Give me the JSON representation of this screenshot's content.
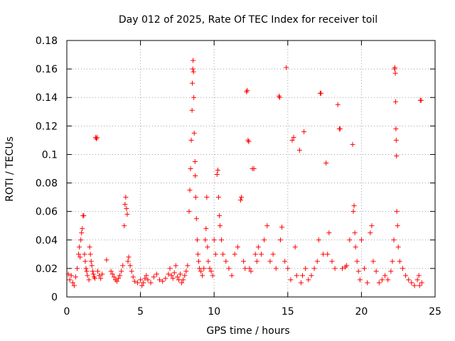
{
  "chart_data": {
    "type": "scatter",
    "title": "Day 012 of 2025, Rate Of TEC Index for receiver toil",
    "xlabel": "GPS time / hours",
    "ylabel": "ROTI / TECUs",
    "xlim": [
      0,
      25
    ],
    "ylim": [
      0,
      0.18
    ],
    "xticks": [
      0,
      5,
      10,
      15,
      20,
      25
    ],
    "xtick_labels": [
      "0",
      "5",
      "10",
      "15",
      "20",
      "25"
    ],
    "yticks": [
      0,
      0.02,
      0.04,
      0.06,
      0.08,
      0.1,
      0.12,
      0.14,
      0.16,
      0.18
    ],
    "ytick_labels": [
      "0",
      "0.02",
      "0.04",
      "0.06",
      "0.08",
      "0.1",
      "0.12",
      "0.14",
      "0.16",
      "0.18"
    ],
    "grid": true,
    "marker": "+",
    "color": "#ff0000",
    "series": [
      {
        "name": "ROTI",
        "points": [
          [
            0.1,
            0.016
          ],
          [
            0.2,
            0.012
          ],
          [
            0.3,
            0.015
          ],
          [
            0.4,
            0.01
          ],
          [
            0.5,
            0.008
          ],
          [
            0.6,
            0.014
          ],
          [
            0.7,
            0.02
          ],
          [
            0.8,
            0.03
          ],
          [
            0.85,
            0.035
          ],
          [
            0.9,
            0.028
          ],
          [
            0.95,
            0.04
          ],
          [
            1.0,
            0.045
          ],
          [
            1.05,
            0.048
          ],
          [
            1.1,
            0.057
          ],
          [
            1.15,
            0.057
          ],
          [
            1.2,
            0.03
          ],
          [
            1.25,
            0.025
          ],
          [
            1.3,
            0.02
          ],
          [
            1.35,
            0.018
          ],
          [
            1.4,
            0.015
          ],
          [
            1.5,
            0.012
          ],
          [
            1.55,
            0.035
          ],
          [
            1.6,
            0.03
          ],
          [
            1.65,
            0.025
          ],
          [
            1.7,
            0.022
          ],
          [
            1.75,
            0.018
          ],
          [
            1.8,
            0.016
          ],
          [
            1.85,
            0.014
          ],
          [
            1.9,
            0.013
          ],
          [
            1.95,
            0.112
          ],
          [
            2.0,
            0.111
          ],
          [
            2.05,
            0.112
          ],
          [
            2.1,
            0.018
          ],
          [
            2.2,
            0.015
          ],
          [
            2.3,
            0.013
          ],
          [
            2.4,
            0.016
          ],
          [
            2.7,
            0.026
          ],
          [
            3.0,
            0.018
          ],
          [
            3.1,
            0.016
          ],
          [
            3.2,
            0.014
          ],
          [
            3.3,
            0.012
          ],
          [
            3.4,
            0.011
          ],
          [
            3.5,
            0.013
          ],
          [
            3.6,
            0.015
          ],
          [
            3.7,
            0.018
          ],
          [
            3.8,
            0.022
          ],
          [
            3.9,
            0.05
          ],
          [
            3.95,
            0.065
          ],
          [
            4.0,
            0.07
          ],
          [
            4.05,
            0.062
          ],
          [
            4.1,
            0.058
          ],
          [
            4.15,
            0.025
          ],
          [
            4.2,
            0.028
          ],
          [
            4.3,
            0.022
          ],
          [
            4.4,
            0.018
          ],
          [
            4.5,
            0.014
          ],
          [
            4.6,
            0.011
          ],
          [
            4.8,
            0.01
          ],
          [
            5.0,
            0.012
          ],
          [
            5.1,
            0.008
          ],
          [
            5.2,
            0.01
          ],
          [
            5.3,
            0.013
          ],
          [
            5.4,
            0.015
          ],
          [
            5.5,
            0.012
          ],
          [
            5.7,
            0.01
          ],
          [
            5.9,
            0.014
          ],
          [
            6.1,
            0.016
          ],
          [
            6.3,
            0.012
          ],
          [
            6.5,
            0.011
          ],
          [
            6.7,
            0.013
          ],
          [
            6.9,
            0.016
          ],
          [
            7.0,
            0.02
          ],
          [
            7.1,
            0.015
          ],
          [
            7.2,
            0.013
          ],
          [
            7.3,
            0.017
          ],
          [
            7.4,
            0.022
          ],
          [
            7.5,
            0.014
          ],
          [
            7.6,
            0.012
          ],
          [
            7.7,
            0.016
          ],
          [
            7.8,
            0.01
          ],
          [
            7.9,
            0.012
          ],
          [
            8.0,
            0.015
          ],
          [
            8.1,
            0.018
          ],
          [
            8.2,
            0.022
          ],
          [
            8.3,
            0.06
          ],
          [
            8.35,
            0.075
          ],
          [
            8.4,
            0.09
          ],
          [
            8.45,
            0.11
          ],
          [
            8.5,
            0.131
          ],
          [
            8.52,
            0.15
          ],
          [
            8.55,
            0.16
          ],
          [
            8.57,
            0.166
          ],
          [
            8.6,
            0.158
          ],
          [
            8.62,
            0.14
          ],
          [
            8.65,
            0.115
          ],
          [
            8.7,
            0.095
          ],
          [
            8.72,
            0.085
          ],
          [
            8.75,
            0.07
          ],
          [
            8.8,
            0.055
          ],
          [
            8.85,
            0.04
          ],
          [
            8.9,
            0.03
          ],
          [
            8.95,
            0.025
          ],
          [
            9.0,
            0.02
          ],
          [
            9.1,
            0.018
          ],
          [
            9.2,
            0.015
          ],
          [
            9.3,
            0.02
          ],
          [
            9.4,
            0.04
          ],
          [
            9.45,
            0.048
          ],
          [
            9.5,
            0.07
          ],
          [
            9.55,
            0.035
          ],
          [
            9.6,
            0.025
          ],
          [
            9.7,
            0.02
          ],
          [
            9.8,
            0.018
          ],
          [
            9.9,
            0.015
          ],
          [
            10.0,
            0.04
          ],
          [
            10.1,
            0.03
          ],
          [
            10.2,
            0.086
          ],
          [
            10.25,
            0.089
          ],
          [
            10.3,
            0.07
          ],
          [
            10.35,
            0.057
          ],
          [
            10.4,
            0.05
          ],
          [
            10.5,
            0.04
          ],
          [
            10.6,
            0.03
          ],
          [
            10.8,
            0.025
          ],
          [
            11.0,
            0.02
          ],
          [
            11.2,
            0.015
          ],
          [
            11.4,
            0.03
          ],
          [
            11.6,
            0.035
          ],
          [
            11.8,
            0.068
          ],
          [
            11.85,
            0.07
          ],
          [
            12.0,
            0.025
          ],
          [
            12.1,
            0.02
          ],
          [
            12.2,
            0.144
          ],
          [
            12.25,
            0.145
          ],
          [
            12.3,
            0.11
          ],
          [
            12.35,
            0.109
          ],
          [
            12.4,
            0.02
          ],
          [
            12.5,
            0.018
          ],
          [
            12.6,
            0.09
          ],
          [
            12.7,
            0.09
          ],
          [
            12.8,
            0.03
          ],
          [
            12.9,
            0.025
          ],
          [
            13.0,
            0.035
          ],
          [
            13.2,
            0.03
          ],
          [
            13.4,
            0.04
          ],
          [
            13.6,
            0.05
          ],
          [
            13.8,
            0.025
          ],
          [
            14.0,
            0.03
          ],
          [
            14.2,
            0.02
          ],
          [
            14.4,
            0.141
          ],
          [
            14.45,
            0.14
          ],
          [
            14.5,
            0.04
          ],
          [
            14.6,
            0.049
          ],
          [
            14.8,
            0.025
          ],
          [
            14.9,
            0.161
          ],
          [
            15.0,
            0.02
          ],
          [
            15.2,
            0.012
          ],
          [
            15.3,
            0.11
          ],
          [
            15.4,
            0.112
          ],
          [
            15.5,
            0.035
          ],
          [
            15.6,
            0.015
          ],
          [
            15.8,
            0.103
          ],
          [
            15.9,
            0.01
          ],
          [
            16.0,
            0.015
          ],
          [
            16.1,
            0.116
          ],
          [
            16.2,
            0.02
          ],
          [
            16.4,
            0.012
          ],
          [
            16.6,
            0.015
          ],
          [
            16.8,
            0.02
          ],
          [
            17.0,
            0.025
          ],
          [
            17.1,
            0.04
          ],
          [
            17.2,
            0.143
          ],
          [
            17.25,
            0.143
          ],
          [
            17.4,
            0.03
          ],
          [
            17.6,
            0.094
          ],
          [
            17.7,
            0.03
          ],
          [
            17.8,
            0.045
          ],
          [
            18.0,
            0.025
          ],
          [
            18.2,
            0.02
          ],
          [
            18.4,
            0.135
          ],
          [
            18.5,
            0.118
          ],
          [
            18.55,
            0.118
          ],
          [
            18.7,
            0.02
          ],
          [
            18.9,
            0.021
          ],
          [
            19.0,
            0.022
          ],
          [
            19.2,
            0.04
          ],
          [
            19.4,
            0.107
          ],
          [
            19.45,
            0.06
          ],
          [
            19.5,
            0.064
          ],
          [
            19.55,
            0.045
          ],
          [
            19.6,
            0.035
          ],
          [
            19.7,
            0.025
          ],
          [
            19.8,
            0.018
          ],
          [
            19.9,
            0.012
          ],
          [
            20.0,
            0.04
          ],
          [
            20.2,
            0.02
          ],
          [
            20.4,
            0.01
          ],
          [
            20.6,
            0.045
          ],
          [
            20.7,
            0.05
          ],
          [
            20.8,
            0.025
          ],
          [
            21.0,
            0.018
          ],
          [
            21.2,
            0.01
          ],
          [
            21.4,
            0.012
          ],
          [
            21.6,
            0.015
          ],
          [
            21.8,
            0.012
          ],
          [
            22.0,
            0.018
          ],
          [
            22.1,
            0.025
          ],
          [
            22.2,
            0.04
          ],
          [
            22.25,
            0.16
          ],
          [
            22.27,
            0.161
          ],
          [
            22.3,
            0.157
          ],
          [
            22.32,
            0.137
          ],
          [
            22.34,
            0.118
          ],
          [
            22.36,
            0.11
          ],
          [
            22.38,
            0.099
          ],
          [
            22.4,
            0.06
          ],
          [
            22.45,
            0.05
          ],
          [
            22.5,
            0.035
          ],
          [
            22.6,
            0.025
          ],
          [
            22.8,
            0.02
          ],
          [
            23.0,
            0.015
          ],
          [
            23.2,
            0.012
          ],
          [
            23.4,
            0.01
          ],
          [
            23.6,
            0.008
          ],
          [
            23.8,
            0.012
          ],
          [
            23.9,
            0.015
          ],
          [
            24.0,
            0.138
          ],
          [
            24.05,
            0.138
          ],
          [
            24.1,
            0.01
          ],
          [
            23.95,
            0.008
          ]
        ]
      }
    ]
  }
}
